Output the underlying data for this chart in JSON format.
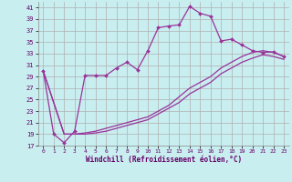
{
  "xlabel": "Windchill (Refroidissement éolien,°C)",
  "background_color": "#c8eef0",
  "grid_color": "#b0b0b0",
  "line_color": "#993399",
  "xlim": [
    -0.5,
    23.5
  ],
  "ylim": [
    17,
    42
  ],
  "yticks": [
    17,
    19,
    21,
    23,
    25,
    27,
    29,
    31,
    33,
    35,
    37,
    39,
    41
  ],
  "xticks": [
    0,
    1,
    2,
    3,
    4,
    5,
    6,
    7,
    8,
    9,
    10,
    11,
    12,
    13,
    14,
    15,
    16,
    17,
    18,
    19,
    20,
    21,
    22,
    23
  ],
  "series1_x": [
    0,
    1,
    2,
    3,
    4,
    5,
    6,
    7,
    8,
    9,
    10,
    11,
    12,
    13,
    14,
    15,
    16,
    17,
    18,
    19,
    20,
    21,
    22,
    23
  ],
  "series1_y": [
    30,
    19,
    17.5,
    19.5,
    29.2,
    29.2,
    29.2,
    30.5,
    31.5,
    30.2,
    33.5,
    37.5,
    37.8,
    38.0,
    41.2,
    40.0,
    39.5,
    35.2,
    35.5,
    34.5,
    33.5,
    33.2,
    33.3,
    32.5
  ],
  "series2_x": [
    0,
    2,
    3,
    4,
    5,
    6,
    7,
    8,
    9,
    10,
    11,
    12,
    13,
    14,
    15,
    16,
    17,
    18,
    19,
    20,
    21,
    22,
    23
  ],
  "series2_y": [
    30,
    19.0,
    19.0,
    19.2,
    19.5,
    20.0,
    20.5,
    21.0,
    21.5,
    22.0,
    23.0,
    24.0,
    25.5,
    27.0,
    28.0,
    29.0,
    30.5,
    31.5,
    32.5,
    33.2,
    33.5,
    33.2,
    32.5
  ],
  "series3_x": [
    0,
    2,
    3,
    4,
    5,
    6,
    7,
    8,
    9,
    10,
    11,
    12,
    13,
    14,
    15,
    16,
    17,
    18,
    19,
    20,
    21,
    22,
    23
  ],
  "series3_y": [
    30,
    19.0,
    19.0,
    19.0,
    19.2,
    19.5,
    20.0,
    20.5,
    21.0,
    21.5,
    22.5,
    23.5,
    24.5,
    26.0,
    27.0,
    28.0,
    29.5,
    30.5,
    31.5,
    32.2,
    32.8,
    32.5,
    32.0
  ]
}
